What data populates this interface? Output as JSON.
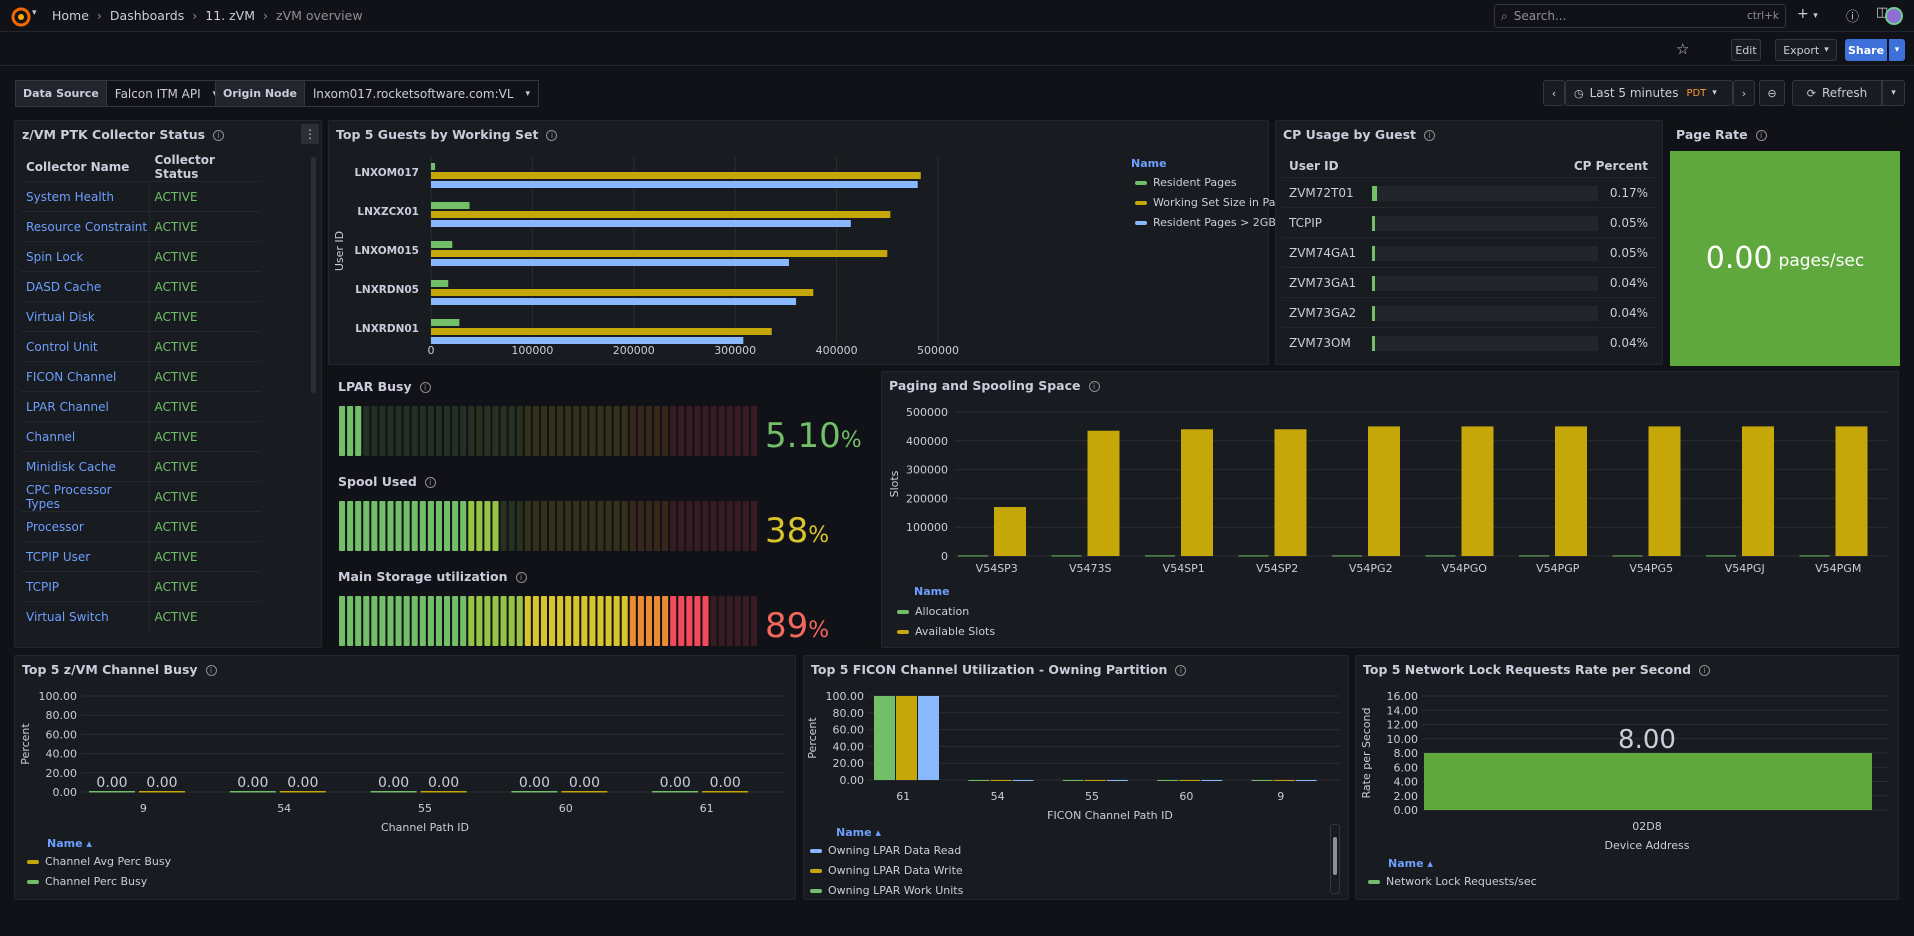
{
  "breadcrumb": [
    "Home",
    "Dashboards",
    "11. zVM",
    "zVM overview"
  ],
  "search": {
    "placeholder": "Search...",
    "shortcut": "ctrl+k"
  },
  "toolbar": {
    "edit": "Edit",
    "export": "Export",
    "share": "Share"
  },
  "variables": {
    "datasource_label": "Data Source",
    "datasource_value": "Falcon ITM API",
    "origin_label": "Origin Node",
    "origin_value": "lnxom017.rocketsoftware.com:VL"
  },
  "timepicker": {
    "range": "Last 5 minutes",
    "tz": "PDT",
    "refresh": "Refresh"
  },
  "collector": {
    "title": "z/VM PTK Collector Status",
    "headers": [
      "Collector Name",
      "Collector Status"
    ],
    "rows": [
      [
        "System Health",
        "ACTIVE"
      ],
      [
        "Resource Constraint",
        "ACTIVE"
      ],
      [
        "Spin Lock",
        "ACTIVE"
      ],
      [
        "DASD Cache",
        "ACTIVE"
      ],
      [
        "Virtual Disk",
        "ACTIVE"
      ],
      [
        "Control Unit",
        "ACTIVE"
      ],
      [
        "FICON Channel",
        "ACTIVE"
      ],
      [
        "LPAR Channel",
        "ACTIVE"
      ],
      [
        "Channel",
        "ACTIVE"
      ],
      [
        "Minidisk Cache",
        "ACTIVE"
      ],
      [
        "CPC Processor Types",
        "ACTIVE"
      ],
      [
        "Processor",
        "ACTIVE"
      ],
      [
        "TCPIP User",
        "ACTIVE"
      ],
      [
        "TCPIP",
        "ACTIVE"
      ],
      [
        "Virtual Switch",
        "ACTIVE"
      ]
    ]
  },
  "colors": {
    "green": "#73bf69",
    "yellow": "#c6a70a",
    "blue": "#8ab8ff",
    "red": "#f2495c",
    "orange": "#ff9830",
    "link": "#6e9fff"
  },
  "chart_data": [
    {
      "id": "top5_guests",
      "type": "bar",
      "orientation": "horizontal",
      "title": "Top 5 Guests by Working Set",
      "ylabel": "User ID",
      "xlim": [
        0,
        500000
      ],
      "xticks": [
        "0",
        "100000",
        "200000",
        "300000",
        "400000",
        "500000"
      ],
      "legend_title": "Name",
      "categories": [
        "LNXOM017",
        "LNXZCX01",
        "LNXOM015",
        "LNXRDN05",
        "LNXRDN01"
      ],
      "series": [
        {
          "name": "Resident Pages",
          "values": [
            4000,
            38000,
            21000,
            17000,
            28000
          ]
        },
        {
          "name": "Working Set Size in Pages",
          "values": [
            483000,
            453000,
            450000,
            377000,
            336000
          ]
        },
        {
          "name": "Resident Pages > 2GB",
          "values": [
            480000,
            414000,
            353000,
            360000,
            308000
          ]
        }
      ]
    },
    {
      "id": "paging",
      "type": "bar",
      "title": "Paging and Spooling Space",
      "ylabel": "Slots",
      "ylim": [
        0,
        500000
      ],
      "yticks": [
        "0",
        "100000",
        "200000",
        "300000",
        "400000",
        "500000"
      ],
      "legend_title": "Name",
      "categories": [
        "V54SP3",
        "V5473S",
        "V54SP1",
        "V54SP2",
        "V54PG2",
        "V54PGO",
        "V54PGP",
        "V54PG5",
        "V54PGJ",
        "V54PGM"
      ],
      "series": [
        {
          "name": "Allocation",
          "values": [
            2000,
            2000,
            2000,
            2000,
            2000,
            2000,
            2000,
            2000,
            2000,
            2000
          ]
        },
        {
          "name": "Available Slots",
          "values": [
            170000,
            435000,
            440000,
            440000,
            450000,
            450000,
            450000,
            450000,
            450000,
            450000
          ]
        }
      ]
    },
    {
      "id": "channel_busy",
      "type": "bar",
      "title": "Top 5 z/VM Channel Busy",
      "xlabel": "Channel Path ID",
      "ylabel": "Percent",
      "ylim": [
        0,
        100
      ],
      "yticks": [
        "0.00",
        "20.00",
        "40.00",
        "60.00",
        "80.00",
        "100.00"
      ],
      "legend_title": "Name",
      "categories": [
        "9",
        "54",
        "55",
        "60",
        "61"
      ],
      "series": [
        {
          "name": "Channel Perc Busy",
          "values": [
            0,
            0,
            0,
            0,
            0
          ]
        },
        {
          "name": "Channel Avg Perc Busy",
          "values": [
            0,
            0,
            0,
            0,
            0
          ]
        }
      ],
      "labels": [
        "0.00",
        "0.00",
        "0.00",
        "0.00",
        "0.00",
        "0.00",
        "0.00",
        "0.00",
        "0.00",
        "0.00"
      ]
    },
    {
      "id": "ficon",
      "type": "bar",
      "title": "Top 5 FICON Channel Utilization - Owning Partition",
      "xlabel": "FICON Channel Path ID",
      "ylabel": "Percent",
      "ylim": [
        0,
        100
      ],
      "yticks": [
        "0.00",
        "20.00",
        "40.00",
        "60.00",
        "80.00",
        "100.00"
      ],
      "legend_title": "Name",
      "categories": [
        "61",
        "54",
        "55",
        "60",
        "9"
      ],
      "series": [
        {
          "name": "Owning LPAR Work Units",
          "values": [
            100,
            0,
            0,
            0,
            0
          ]
        },
        {
          "name": "Owning LPAR Data Write",
          "values": [
            100,
            0,
            0,
            0,
            0
          ]
        },
        {
          "name": "Owning LPAR Data Read",
          "values": [
            100,
            0,
            0,
            0,
            0
          ]
        }
      ]
    },
    {
      "id": "netlock",
      "type": "bar",
      "title": "Top 5 Network Lock Requests Rate per Second",
      "xlabel": "Device Address",
      "ylabel": "Rate per Second",
      "ylim": [
        0,
        16
      ],
      "yticks": [
        "0.00",
        "2.00",
        "4.00",
        "6.00",
        "8.00",
        "10.00",
        "12.00",
        "14.00",
        "16.00"
      ],
      "legend_title": "Name",
      "categories": [
        "02D8"
      ],
      "series": [
        {
          "name": "Network Lock Requests/sec",
          "values": [
            8
          ]
        }
      ],
      "value_label": "8.00"
    }
  ],
  "gauges": [
    {
      "title": "LPAR Busy",
      "value": 5.1,
      "display": "5.10",
      "unit": "%",
      "color": "#73bf69"
    },
    {
      "title": "Spool Used",
      "value": 38,
      "display": "38",
      "unit": "%",
      "color": "#d8c42c"
    },
    {
      "title": "Main Storage utilization",
      "value": 89,
      "display": "89",
      "unit": "%",
      "color": "#f2695c"
    }
  ],
  "cp_usage": {
    "title": "CP Usage by Guest",
    "headers": [
      "User ID",
      "CP Percent"
    ],
    "rows": [
      {
        "user": "ZVM72T01",
        "pct": "0.17%",
        "value": 0.17
      },
      {
        "user": "TCPIP",
        "pct": "0.05%",
        "value": 0.05
      },
      {
        "user": "ZVM74GA1",
        "pct": "0.05%",
        "value": 0.05
      },
      {
        "user": "ZVM73GA1",
        "pct": "0.04%",
        "value": 0.04
      },
      {
        "user": "ZVM73GA2",
        "pct": "0.04%",
        "value": 0.04
      },
      {
        "user": "ZVM73OM",
        "pct": "0.04%",
        "value": 0.04
      }
    ]
  },
  "page_rate": {
    "title": "Page Rate",
    "value": "0.00",
    "unit": "pages/sec"
  },
  "legend_ficon_order": [
    "Owning LPAR Data Read",
    "Owning LPAR Data Write",
    "Owning LPAR Work Units"
  ],
  "legend_channel_order": [
    "Channel Avg Perc Busy",
    "Channel Perc Busy"
  ]
}
